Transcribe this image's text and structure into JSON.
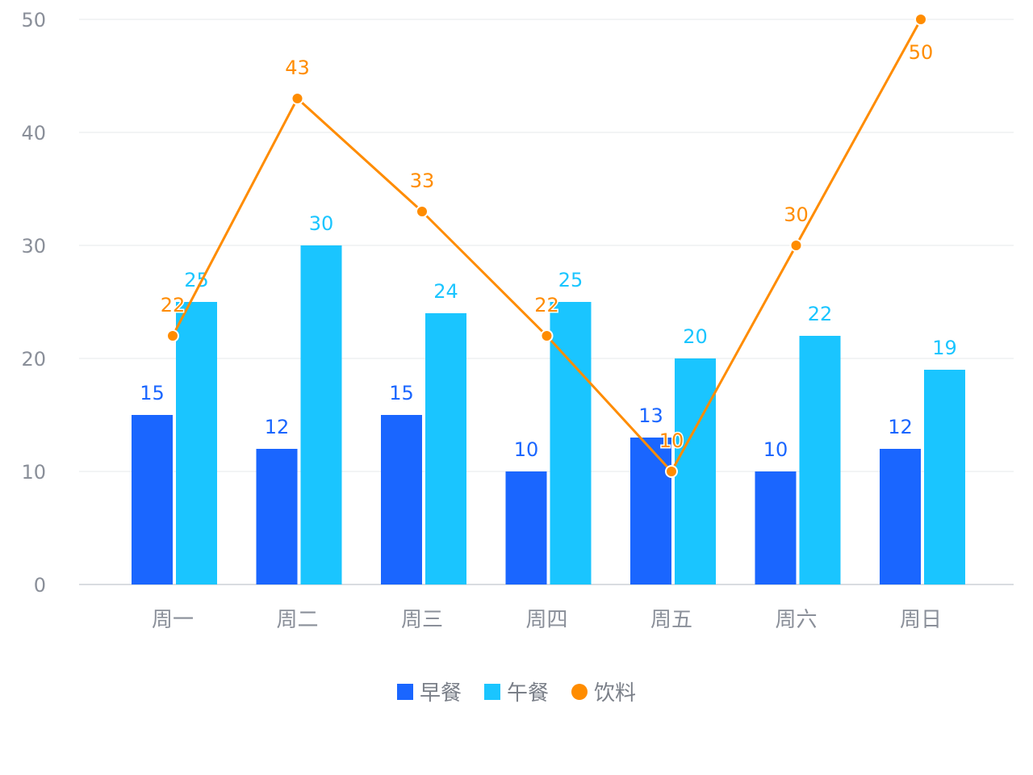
{
  "chart_data": {
    "type": "bar",
    "categories": [
      "周一",
      "周二",
      "周三",
      "周四",
      "周五",
      "周六",
      "周日"
    ],
    "series": [
      {
        "name": "早餐",
        "type": "bar",
        "color": "#1a66ff",
        "values": [
          15,
          12,
          15,
          10,
          13,
          10,
          12
        ]
      },
      {
        "name": "午餐",
        "type": "bar",
        "color": "#1ac5ff",
        "values": [
          25,
          30,
          24,
          25,
          20,
          22,
          19
        ]
      },
      {
        "name": "饮料",
        "type": "line",
        "color": "#ff8c00",
        "values": [
          22,
          43,
          33,
          22,
          10,
          30,
          50
        ]
      }
    ],
    "ylim": [
      0,
      50
    ],
    "yticks": [
      0,
      10,
      20,
      30,
      40,
      50
    ],
    "grid": true,
    "legend_position": "bottom"
  },
  "colors": {
    "axis_text": "#8a8f99",
    "grid": "#e6e8eb",
    "axis_line": "#d9dce1"
  }
}
